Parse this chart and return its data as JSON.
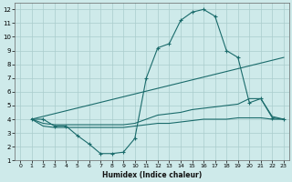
{
  "xlabel": "Humidex (Indice chaleur)",
  "bg_color": "#ceeaea",
  "grid_color": "#aacccc",
  "line_color": "#1a6b6b",
  "xlim": [
    -0.5,
    23.5
  ],
  "ylim": [
    1,
    12.5
  ],
  "xticks": [
    0,
    1,
    2,
    3,
    4,
    5,
    6,
    7,
    8,
    9,
    10,
    11,
    12,
    13,
    14,
    15,
    16,
    17,
    18,
    19,
    20,
    21,
    22,
    23
  ],
  "yticks": [
    1,
    2,
    3,
    4,
    5,
    6,
    7,
    8,
    9,
    10,
    11,
    12
  ],
  "lines": [
    {
      "x": [
        1,
        2,
        3,
        4,
        5,
        6,
        7,
        8,
        9,
        10,
        11,
        12,
        13,
        14,
        15,
        16,
        17,
        18,
        19,
        20,
        21,
        22,
        23
      ],
      "y": [
        4,
        4,
        3.5,
        3.5,
        2.8,
        2.2,
        1.5,
        1.5,
        1.6,
        2.6,
        7.0,
        9.2,
        9.5,
        11.2,
        11.8,
        12.0,
        11.5,
        9.0,
        8.5,
        5.2,
        5.5,
        4.1,
        4.0
      ]
    },
    {
      "x": [
        1,
        23
      ],
      "y": [
        4,
        8.5
      ]
    },
    {
      "x": [
        1,
        2,
        3,
        4,
        5,
        6,
        7,
        8,
        9,
        10,
        11,
        12,
        13,
        14,
        15,
        16,
        17,
        18,
        19,
        20,
        21,
        22,
        23
      ],
      "y": [
        4.0,
        3.7,
        3.6,
        3.6,
        3.6,
        3.6,
        3.6,
        3.6,
        3.6,
        3.7,
        4.0,
        4.3,
        4.4,
        4.5,
        4.7,
        4.8,
        4.9,
        5.0,
        5.1,
        5.5,
        5.5,
        4.2,
        4.0
      ]
    },
    {
      "x": [
        1,
        2,
        3,
        4,
        5,
        6,
        7,
        8,
        9,
        10,
        11,
        12,
        13,
        14,
        15,
        16,
        17,
        18,
        19,
        20,
        21,
        22,
        23
      ],
      "y": [
        4.0,
        3.5,
        3.4,
        3.4,
        3.4,
        3.4,
        3.4,
        3.4,
        3.4,
        3.5,
        3.6,
        3.7,
        3.7,
        3.8,
        3.9,
        4.0,
        4.0,
        4.0,
        4.1,
        4.1,
        4.1,
        4.0,
        4.0
      ]
    }
  ]
}
